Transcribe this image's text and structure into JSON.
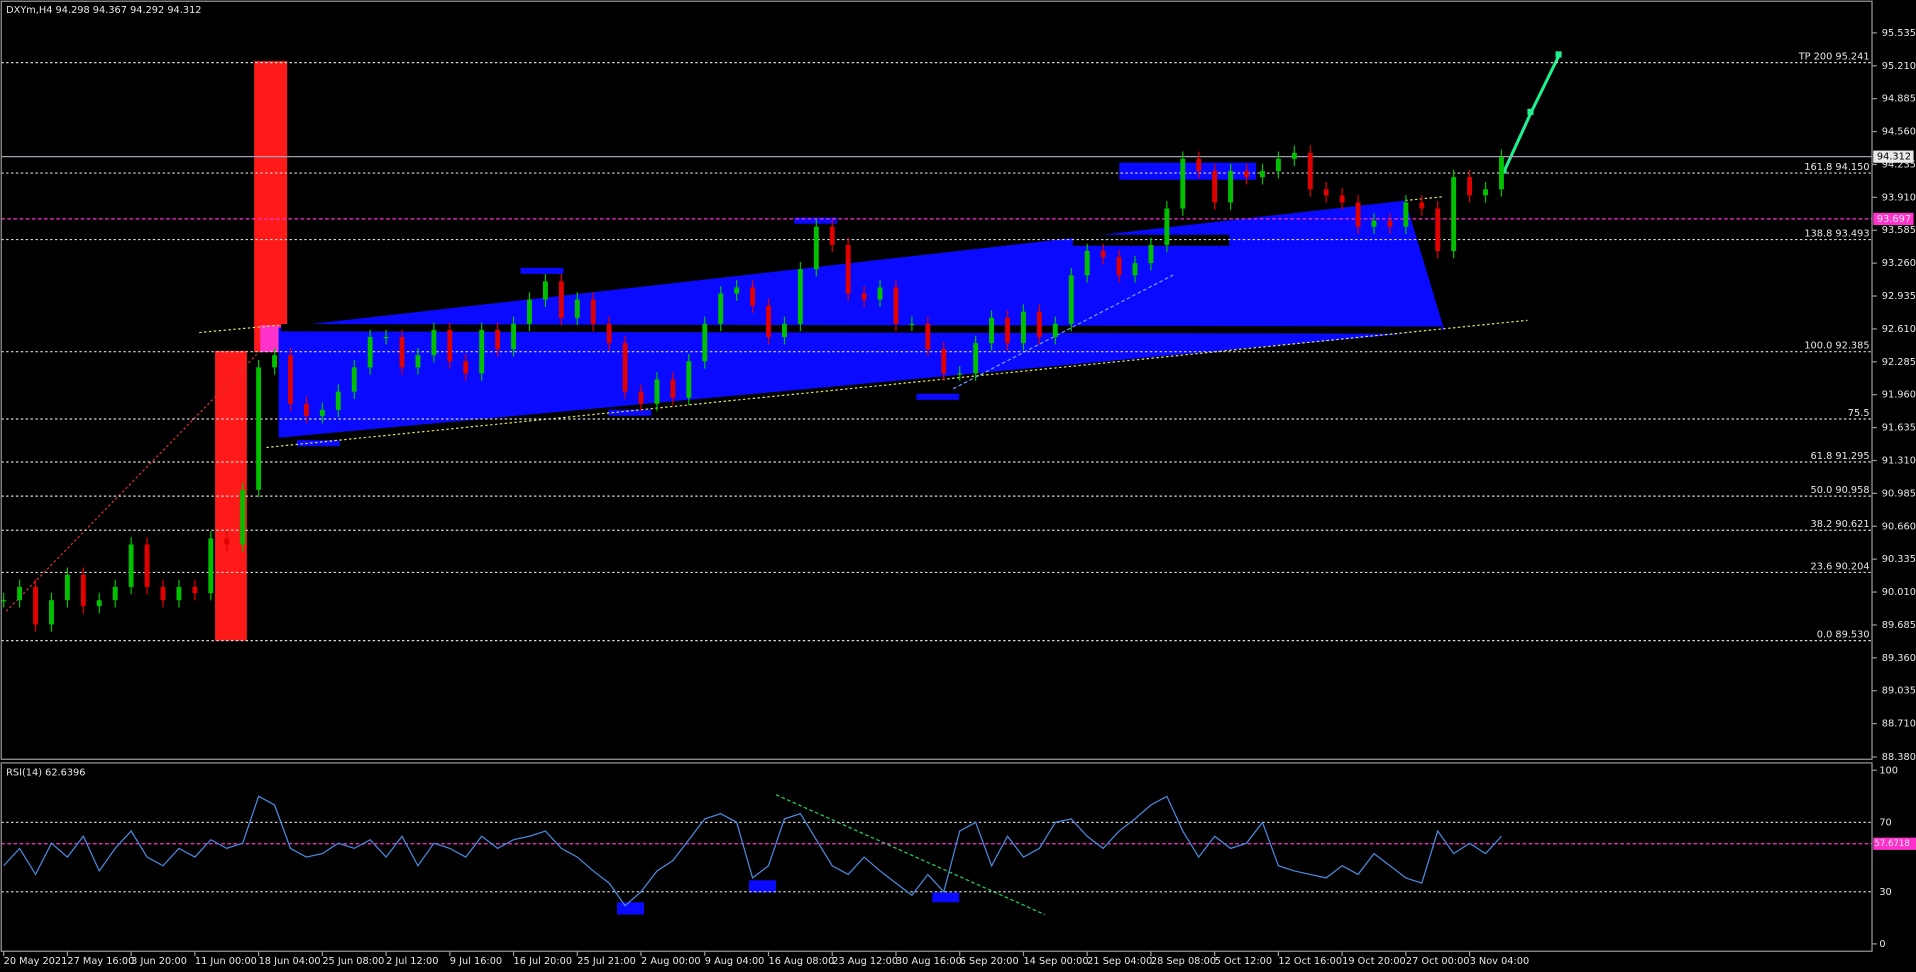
{
  "chart_data": {
    "type": "candlestick",
    "title": "DXYm,H4  94.298 94.367 94.292 94.312",
    "categories": [
      "20 May 2021",
      null,
      null,
      null,
      "27 May 16:00",
      null,
      null,
      null,
      "3 Jun 20:00",
      null,
      null,
      null,
      "11 Jun 00:00",
      null,
      null,
      null,
      "18 Jun 04:00",
      null,
      null,
      null,
      "25 Jun 08:00",
      null,
      null,
      null,
      "2 Jul 12:00",
      null,
      null,
      null,
      "9 Jul 16:00",
      null,
      null,
      null,
      "16 Jul 20:00",
      null,
      null,
      null,
      "25 Jul 21:00",
      null,
      null,
      null,
      "2 Aug 00:00",
      null,
      null,
      null,
      "9 Aug 04:00",
      null,
      null,
      null,
      "16 Aug 08:00",
      null,
      null,
      null,
      "23 Aug 12:00",
      null,
      null,
      null,
      "30 Aug 16:00",
      null,
      null,
      null,
      "6 Sep 20:00",
      null,
      null,
      null,
      "14 Sep 00:00",
      null,
      null,
      null,
      "21 Sep 04:00",
      null,
      null,
      null,
      "28 Sep 08:00",
      null,
      null,
      null,
      "5 Oct 12:00",
      null,
      null,
      null,
      "12 Oct 16:00",
      null,
      null,
      null,
      "19 Oct 20:00",
      null,
      null,
      null,
      "27 Oct 00:00",
      null,
      null,
      null,
      "3 Nov 04:00",
      null,
      null,
      null
    ],
    "price": {
      "up_color": "#00c000",
      "down_color": "#e00000",
      "values": [
        89.93,
        90.06,
        89.69,
        89.93,
        90.18,
        89.87,
        89.93,
        90.06,
        90.48,
        90.06,
        89.93,
        90.06,
        90.0,
        90.54,
        90.48,
        91.02,
        92.23,
        92.35,
        91.87,
        91.75,
        91.81,
        91.99,
        92.23,
        92.53,
        92.53,
        92.23,
        92.35,
        92.6,
        92.29,
        92.17,
        92.6,
        92.41,
        92.66,
        92.9,
        93.08,
        92.72,
        92.9,
        92.66,
        92.47,
        91.99,
        91.87,
        92.11,
        91.93,
        92.29,
        92.66,
        92.96,
        93.02,
        92.84,
        92.53,
        92.66,
        93.2,
        93.62,
        93.44,
        92.96,
        92.9,
        93.02,
        92.66,
        92.66,
        92.41,
        92.17,
        92.17,
        92.47,
        92.72,
        92.47,
        92.78,
        92.53,
        92.66,
        93.14,
        93.38,
        93.32,
        93.14,
        93.26,
        93.44,
        93.8,
        94.29,
        94.17,
        93.86,
        94.17,
        94.11,
        94.17,
        94.29,
        94.35,
        93.99,
        93.93,
        93.86,
        93.62,
        93.68,
        93.62,
        93.86,
        93.8,
        93.38,
        94.11,
        93.93,
        93.99,
        94.31,
        null
      ]
    },
    "ylim": [
      88.37,
      95.86
    ],
    "yticks": [
      95.535,
      {
        "value": 95.21,
        "label": "95.210"
      },
      94.885,
      {
        "value": 94.56,
        "label": "94.560"
      },
      94.235,
      {
        "value": 93.91,
        "label": "93.910"
      },
      93.585,
      {
        "value": 93.26,
        "label": "93.260"
      },
      92.935,
      {
        "value": 92.61,
        "label": "92.610"
      },
      92.285,
      {
        "value": 91.96,
        "label": "91.960"
      },
      91.635,
      {
        "value": 91.31,
        "label": "91.310"
      },
      90.985,
      {
        "value": 90.66,
        "label": "90.660"
      },
      90.335,
      {
        "value": 90.01,
        "label": "90.010"
      },
      89.685,
      {
        "value": 89.36,
        "label": "89.360"
      },
      89.035,
      {
        "value": 88.71,
        "label": "88.710"
      },
      {
        "value": 88.38,
        "label": "88.380"
      }
    ],
    "levels": [
      {
        "label": "TP 200 95.241",
        "value": 95.241
      },
      {
        "label": "161.8 94.150",
        "value": 94.15
      },
      {
        "label": "138.8 93.493",
        "value": 93.493
      },
      {
        "label": "100.0 92.385",
        "value": 92.385
      },
      {
        "label": "75.5",
        "value": 91.72
      },
      {
        "label": "61.8 91.295",
        "value": 91.295
      },
      {
        "label": "50.0 90.958",
        "value": 90.958
      },
      {
        "label": "38.2 90.621",
        "value": 90.621
      },
      {
        "label": "23.6 90.204",
        "value": 90.204
      },
      {
        "label": "0.0 89.530",
        "value": 89.53
      }
    ],
    "current_price": 94.312,
    "marked_price": 93.697,
    "rsi": {
      "title": "RSI(14) 62.6396",
      "color": "#4a8be0",
      "level": 57.6718,
      "ylim": [
        0,
        100
      ],
      "yticks": [
        100,
        70,
        30,
        0
      ],
      "values": [
        45,
        55,
        40,
        58,
        50,
        62,
        42,
        55,
        65,
        50,
        45,
        55,
        50,
        60,
        55,
        58,
        85,
        80,
        55,
        50,
        52,
        58,
        55,
        60,
        50,
        62,
        45,
        58,
        55,
        50,
        62,
        55,
        60,
        62,
        65,
        55,
        50,
        42,
        35,
        22,
        30,
        42,
        48,
        60,
        72,
        75,
        70,
        38,
        45,
        72,
        75,
        60,
        45,
        40,
        50,
        42,
        35,
        28,
        40,
        30,
        65,
        70,
        45,
        62,
        50,
        55,
        70,
        72,
        62,
        55,
        65,
        72,
        80,
        85,
        65,
        50,
        62,
        55,
        58,
        70,
        45,
        42,
        40,
        38,
        45,
        40,
        52,
        45,
        38,
        35,
        65,
        52,
        58,
        52,
        62,
        null
      ]
    }
  }
}
